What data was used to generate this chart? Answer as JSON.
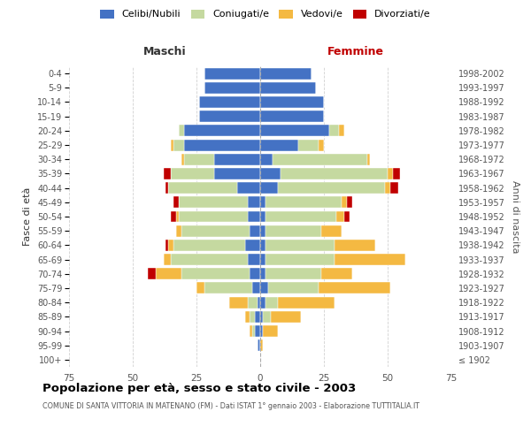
{
  "age_groups": [
    "100+",
    "95-99",
    "90-94",
    "85-89",
    "80-84",
    "75-79",
    "70-74",
    "65-69",
    "60-64",
    "55-59",
    "50-54",
    "45-49",
    "40-44",
    "35-39",
    "30-34",
    "25-29",
    "20-24",
    "15-19",
    "10-14",
    "5-9",
    "0-4"
  ],
  "birth_years": [
    "≤ 1902",
    "1903-1907",
    "1908-1912",
    "1913-1917",
    "1918-1922",
    "1923-1927",
    "1928-1932",
    "1933-1937",
    "1938-1942",
    "1943-1947",
    "1948-1952",
    "1953-1957",
    "1958-1962",
    "1963-1967",
    "1968-1972",
    "1973-1977",
    "1978-1982",
    "1983-1987",
    "1988-1992",
    "1993-1997",
    "1998-2002"
  ],
  "colors": {
    "celibi": "#4472C4",
    "coniugati": "#C5D9A0",
    "vedovi": "#F4B942",
    "divorziati": "#C00000"
  },
  "maschi": {
    "celibi": [
      0,
      1,
      2,
      2,
      1,
      3,
      4,
      5,
      6,
      4,
      5,
      5,
      9,
      18,
      18,
      30,
      30,
      24,
      24,
      22,
      22
    ],
    "coniugati": [
      0,
      0,
      1,
      2,
      4,
      19,
      27,
      30,
      28,
      27,
      27,
      27,
      27,
      17,
      12,
      4,
      2,
      0,
      0,
      0,
      0
    ],
    "vedovi": [
      0,
      0,
      1,
      2,
      7,
      3,
      10,
      3,
      2,
      2,
      1,
      0,
      0,
      0,
      1,
      1,
      0,
      0,
      0,
      0,
      0
    ],
    "divorziati": [
      0,
      0,
      0,
      0,
      0,
      0,
      3,
      0,
      1,
      0,
      2,
      2,
      1,
      3,
      0,
      0,
      0,
      0,
      0,
      0,
      0
    ]
  },
  "femmine": {
    "celibi": [
      0,
      0,
      1,
      1,
      2,
      3,
      2,
      2,
      2,
      2,
      2,
      2,
      7,
      8,
      5,
      15,
      27,
      25,
      25,
      22,
      20
    ],
    "coniugati": [
      0,
      0,
      0,
      3,
      5,
      20,
      22,
      27,
      27,
      22,
      28,
      30,
      42,
      42,
      37,
      8,
      4,
      0,
      0,
      0,
      0
    ],
    "vedovi": [
      0,
      1,
      6,
      12,
      22,
      28,
      12,
      28,
      16,
      8,
      3,
      2,
      2,
      2,
      1,
      2,
      2,
      0,
      0,
      0,
      0
    ],
    "divorziati": [
      0,
      0,
      0,
      0,
      0,
      0,
      0,
      0,
      0,
      0,
      2,
      2,
      3,
      3,
      0,
      0,
      0,
      0,
      0,
      0,
      0
    ]
  },
  "xlim": 75,
  "xlabel_maschi": "Maschi",
  "xlabel_femmine": "Femmine",
  "ylabel": "Fasce di età",
  "ylabel_right": "Anni di nascita",
  "title": "Popolazione per età, sesso e stato civile - 2003",
  "subtitle": "COMUNE DI SANTA VITTORIA IN MATENANO (FM) - Dati ISTAT 1° gennaio 2003 - Elaborazione TUTTITALIA.IT",
  "legend_labels": [
    "Celibi/Nubili",
    "Coniugati/e",
    "Vedovi/e",
    "Divorziati/e"
  ],
  "background_color": "#FFFFFF",
  "grid_color": "#CCCCCC"
}
